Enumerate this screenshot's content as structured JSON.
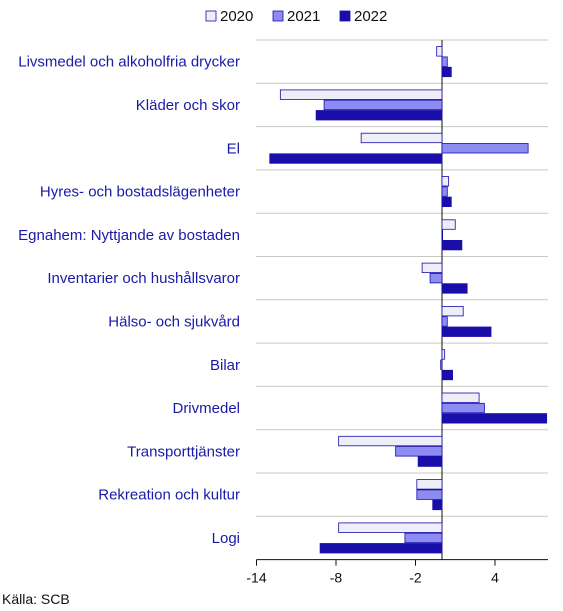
{
  "source_text": "Källa: SCB",
  "colors": {
    "s2020": "#eeeef8",
    "s2021": "#8c8cf2",
    "s2022": "#1a0eaa",
    "bar_stroke": "#1a0eaa",
    "category_text": "#1a1aa8",
    "grid": "#c8c8c8"
  },
  "chart_data": {
    "type": "bar",
    "orientation": "horizontal",
    "title": "",
    "xlabel": "",
    "ylabel": "",
    "xlim": [
      -14,
      8
    ],
    "xticks": [
      -14,
      -8,
      -2,
      4
    ],
    "xtick_labels": [
      "-14",
      "-8",
      "-2",
      "4"
    ],
    "legend_position": "top",
    "categories": [
      "Livsmedel och alkoholfria drycker",
      "Kläder och skor",
      "El",
      "Hyres- och bostadslägenheter",
      "Egnahem: Nyttjande av bostaden",
      "Inventarier och hushållsvaror",
      "Hälso- och sjukvård",
      "Bilar",
      "Drivmedel",
      "Transporttjänster",
      "Rekreation och kultur",
      "Logi"
    ],
    "series": [
      {
        "name": "2020",
        "values": [
          -0.4,
          -12.2,
          -6.1,
          0.5,
          1.0,
          -1.5,
          1.6,
          0.2,
          2.8,
          -7.8,
          -1.9,
          -7.8
        ]
      },
      {
        "name": "2021",
        "values": [
          0.4,
          -8.9,
          6.5,
          0.4,
          0.0,
          -0.9,
          0.4,
          -0.1,
          3.2,
          -3.5,
          -1.9,
          -2.8
        ]
      },
      {
        "name": "2022",
        "values": [
          0.7,
          -9.5,
          -13.0,
          0.7,
          1.5,
          1.9,
          3.7,
          0.8,
          7.9,
          -1.8,
          -0.7,
          -9.2
        ]
      }
    ]
  }
}
